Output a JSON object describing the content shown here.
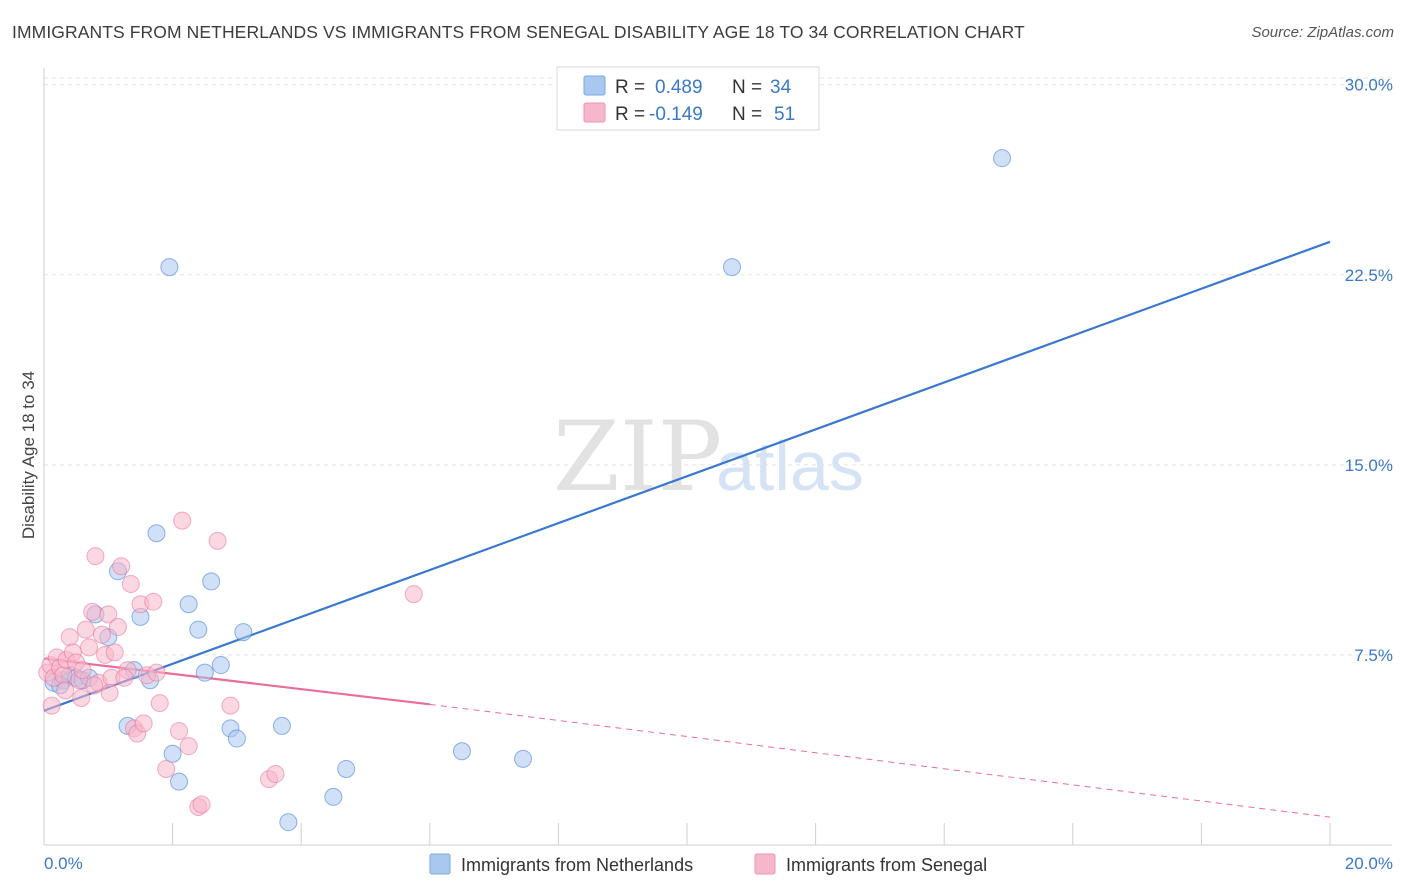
{
  "header": {
    "title": "IMMIGRANTS FROM NETHERLANDS VS IMMIGRANTS FROM SENEGAL DISABILITY AGE 18 TO 34 CORRELATION CHART",
    "source": "Source: ZipAtlas.com"
  },
  "watermark": {
    "zip": "ZIP",
    "atlas": "atlas"
  },
  "legend": {
    "rows": [
      {
        "r_label": "R = ",
        "r_value": "0.489",
        "n_label": "N = ",
        "n_value": "34",
        "color": "#a9c8f0"
      },
      {
        "r_label": "R = ",
        "r_value": "-0.149",
        "n_label": "N = ",
        "n_value": "51",
        "color": "#f7b7cb"
      }
    ]
  },
  "chart_data": {
    "type": "scatter",
    "title": "IMMIGRANTS FROM NETHERLANDS VS IMMIGRANTS FROM SENEGAL DISABILITY AGE 18 TO 34 CORRELATION CHART",
    "xlabel": "",
    "ylabel": "Disability Age 18 to 34",
    "xlim": [
      0,
      20
    ],
    "ylim": [
      0,
      30.5
    ],
    "x_tick_labels": [
      "0.0%",
      "20.0%"
    ],
    "y_ticks": [
      7.5,
      15.0,
      22.5,
      30.0
    ],
    "y_tick_labels": [
      "7.5%",
      "15.0%",
      "22.5%",
      "30.0%"
    ],
    "grid": true,
    "series": [
      {
        "name": "Immigrants from Netherlands",
        "color": "#3a78d0",
        "fill": "#a9c8f0",
        "trend": {
          "x": [
            0,
            20
          ],
          "y": [
            5.3,
            23.8
          ],
          "dashed_x": null
        },
        "points": [
          [
            0.15,
            6.4
          ],
          [
            0.3,
            6.5
          ],
          [
            0.4,
            6.7
          ],
          [
            0.5,
            6.6
          ],
          [
            0.6,
            6.5
          ],
          [
            0.8,
            9.1
          ],
          [
            1.0,
            8.2
          ],
          [
            1.15,
            10.8
          ],
          [
            1.3,
            4.7
          ],
          [
            1.4,
            6.9
          ],
          [
            1.5,
            9.0
          ],
          [
            1.65,
            6.5
          ],
          [
            1.75,
            12.3
          ],
          [
            1.95,
            22.8
          ],
          [
            2.0,
            3.6
          ],
          [
            2.1,
            2.5
          ],
          [
            2.25,
            9.5
          ],
          [
            2.4,
            8.5
          ],
          [
            2.5,
            6.8
          ],
          [
            2.6,
            10.4
          ],
          [
            2.75,
            7.1
          ],
          [
            2.9,
            4.6
          ],
          [
            3.0,
            4.2
          ],
          [
            3.1,
            8.4
          ],
          [
            3.7,
            4.7
          ],
          [
            3.8,
            0.9
          ],
          [
            4.5,
            1.9
          ],
          [
            4.7,
            3.0
          ],
          [
            6.5,
            3.7
          ],
          [
            7.45,
            3.4
          ],
          [
            10.7,
            22.8
          ],
          [
            14.9,
            27.1
          ],
          [
            0.25,
            6.3
          ],
          [
            0.7,
            6.6
          ]
        ]
      },
      {
        "name": "Immigrants from Senegal",
        "color": "#e96d98",
        "fill": "#f7b7cb",
        "trend": {
          "x": [
            0,
            6.0
          ],
          "y": [
            7.35,
            5.55
          ],
          "dashed_x": [
            6.0,
            20
          ],
          "dashed_y": [
            5.55,
            1.1
          ]
        },
        "points": [
          [
            0.05,
            6.8
          ],
          [
            0.1,
            7.1
          ],
          [
            0.15,
            6.6
          ],
          [
            0.2,
            7.4
          ],
          [
            0.25,
            7.0
          ],
          [
            0.3,
            6.7
          ],
          [
            0.35,
            7.3
          ],
          [
            0.4,
            8.2
          ],
          [
            0.45,
            7.6
          ],
          [
            0.5,
            7.2
          ],
          [
            0.55,
            6.5
          ],
          [
            0.6,
            6.9
          ],
          [
            0.65,
            8.5
          ],
          [
            0.7,
            7.8
          ],
          [
            0.75,
            9.2
          ],
          [
            0.8,
            11.4
          ],
          [
            0.85,
            6.4
          ],
          [
            0.9,
            8.3
          ],
          [
            0.95,
            7.5
          ],
          [
            1.0,
            9.1
          ],
          [
            1.05,
            6.6
          ],
          [
            1.1,
            7.6
          ],
          [
            1.15,
            8.6
          ],
          [
            1.2,
            11.0
          ],
          [
            1.3,
            6.9
          ],
          [
            1.35,
            10.3
          ],
          [
            1.4,
            4.6
          ],
          [
            1.45,
            4.4
          ],
          [
            1.5,
            9.5
          ],
          [
            1.55,
            4.8
          ],
          [
            1.6,
            6.7
          ],
          [
            1.7,
            9.6
          ],
          [
            1.75,
            6.8
          ],
          [
            1.8,
            5.6
          ],
          [
            1.9,
            3.0
          ],
          [
            2.1,
            4.5
          ],
          [
            2.15,
            12.8
          ],
          [
            2.25,
            3.9
          ],
          [
            2.4,
            1.5
          ],
          [
            2.45,
            1.6
          ],
          [
            2.7,
            12.0
          ],
          [
            2.9,
            5.5
          ],
          [
            3.5,
            2.6
          ],
          [
            3.6,
            2.8
          ],
          [
            5.75,
            9.9
          ],
          [
            0.12,
            5.5
          ],
          [
            0.33,
            6.1
          ],
          [
            0.58,
            5.8
          ],
          [
            0.78,
            6.3
          ],
          [
            1.02,
            6.0
          ],
          [
            1.25,
            6.6
          ]
        ]
      }
    ]
  }
}
